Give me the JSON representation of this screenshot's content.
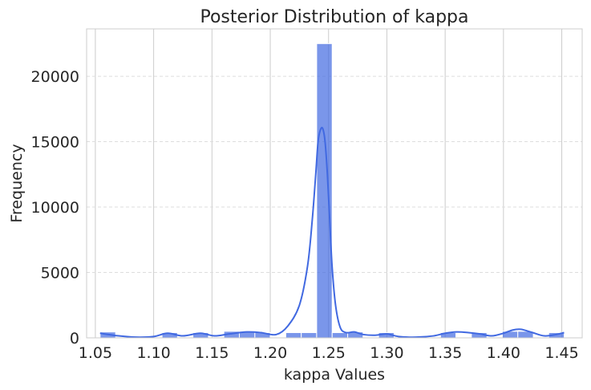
{
  "chart_data": {
    "type": "bar",
    "title": "Posterior Distribution of kappa",
    "xlabel": "kappa Values",
    "ylabel": "Frequency",
    "xlim": [
      1.0425,
      1.4675
    ],
    "ylim": [
      0,
      23625
    ],
    "x_ticks": [
      1.05,
      1.1,
      1.15,
      1.2,
      1.25,
      1.3,
      1.35,
      1.4,
      1.45
    ],
    "x_tick_labels": [
      "1.05",
      "1.10",
      "1.15",
      "1.20",
      "1.25",
      "1.30",
      "1.35",
      "1.40",
      "1.45"
    ],
    "y_ticks": [
      0,
      5000,
      10000,
      15000,
      20000
    ],
    "y_tick_labels": [
      "0",
      "5000",
      "10000",
      "15000",
      "20000"
    ],
    "grid": {
      "x": "solid vertical",
      "y": "dashed horizontal"
    },
    "bin_edges": [
      1.0541,
      1.0674,
      1.0806,
      1.0939,
      1.1072,
      1.1204,
      1.1337,
      1.147,
      1.1602,
      1.1735,
      1.1868,
      1.2,
      1.2133,
      1.2266,
      1.2398,
      1.2531,
      1.2664,
      1.2796,
      1.2929,
      1.3062,
      1.3194,
      1.3327,
      1.346,
      1.3592,
      1.3725,
      1.3858,
      1.399,
      1.4123,
      1.4256,
      1.4388,
      1.4521
    ],
    "counts": [
      450,
      0,
      0,
      0,
      400,
      0,
      400,
      0,
      500,
      500,
      400,
      0,
      400,
      400,
      22500,
      400,
      450,
      0,
      400,
      0,
      0,
      0,
      400,
      0,
      400,
      0,
      500,
      500,
      0,
      400
    ],
    "kde": {
      "x": [
        1.054,
        1.07,
        1.085,
        1.1,
        1.112,
        1.125,
        1.14,
        1.152,
        1.165,
        1.18,
        1.192,
        1.205,
        1.215,
        1.225,
        1.232,
        1.236,
        1.239,
        1.241,
        1.243,
        1.245,
        1.247,
        1.249,
        1.251,
        1.253,
        1.256,
        1.26,
        1.265,
        1.272,
        1.28,
        1.29,
        1.3,
        1.31,
        1.325,
        1.34,
        1.35,
        1.36,
        1.37,
        1.38,
        1.39,
        1.4,
        1.408,
        1.415,
        1.425,
        1.435,
        1.445,
        1.452
      ],
      "y": [
        350,
        150,
        50,
        100,
        350,
        150,
        350,
        150,
        300,
        450,
        400,
        250,
        900,
        2500,
        5500,
        9000,
        12500,
        15000,
        15900,
        16000,
        15000,
        12500,
        9000,
        5500,
        2500,
        800,
        400,
        450,
        250,
        200,
        300,
        100,
        50,
        150,
        350,
        450,
        400,
        300,
        150,
        350,
        600,
        650,
        400,
        150,
        250,
        400
      ]
    },
    "colors": {
      "bar": "#4169e1",
      "bar_opacity": 0.7,
      "kde_line": "#4169e1",
      "grid": "#cccccc",
      "background": "#ffffff"
    }
  }
}
